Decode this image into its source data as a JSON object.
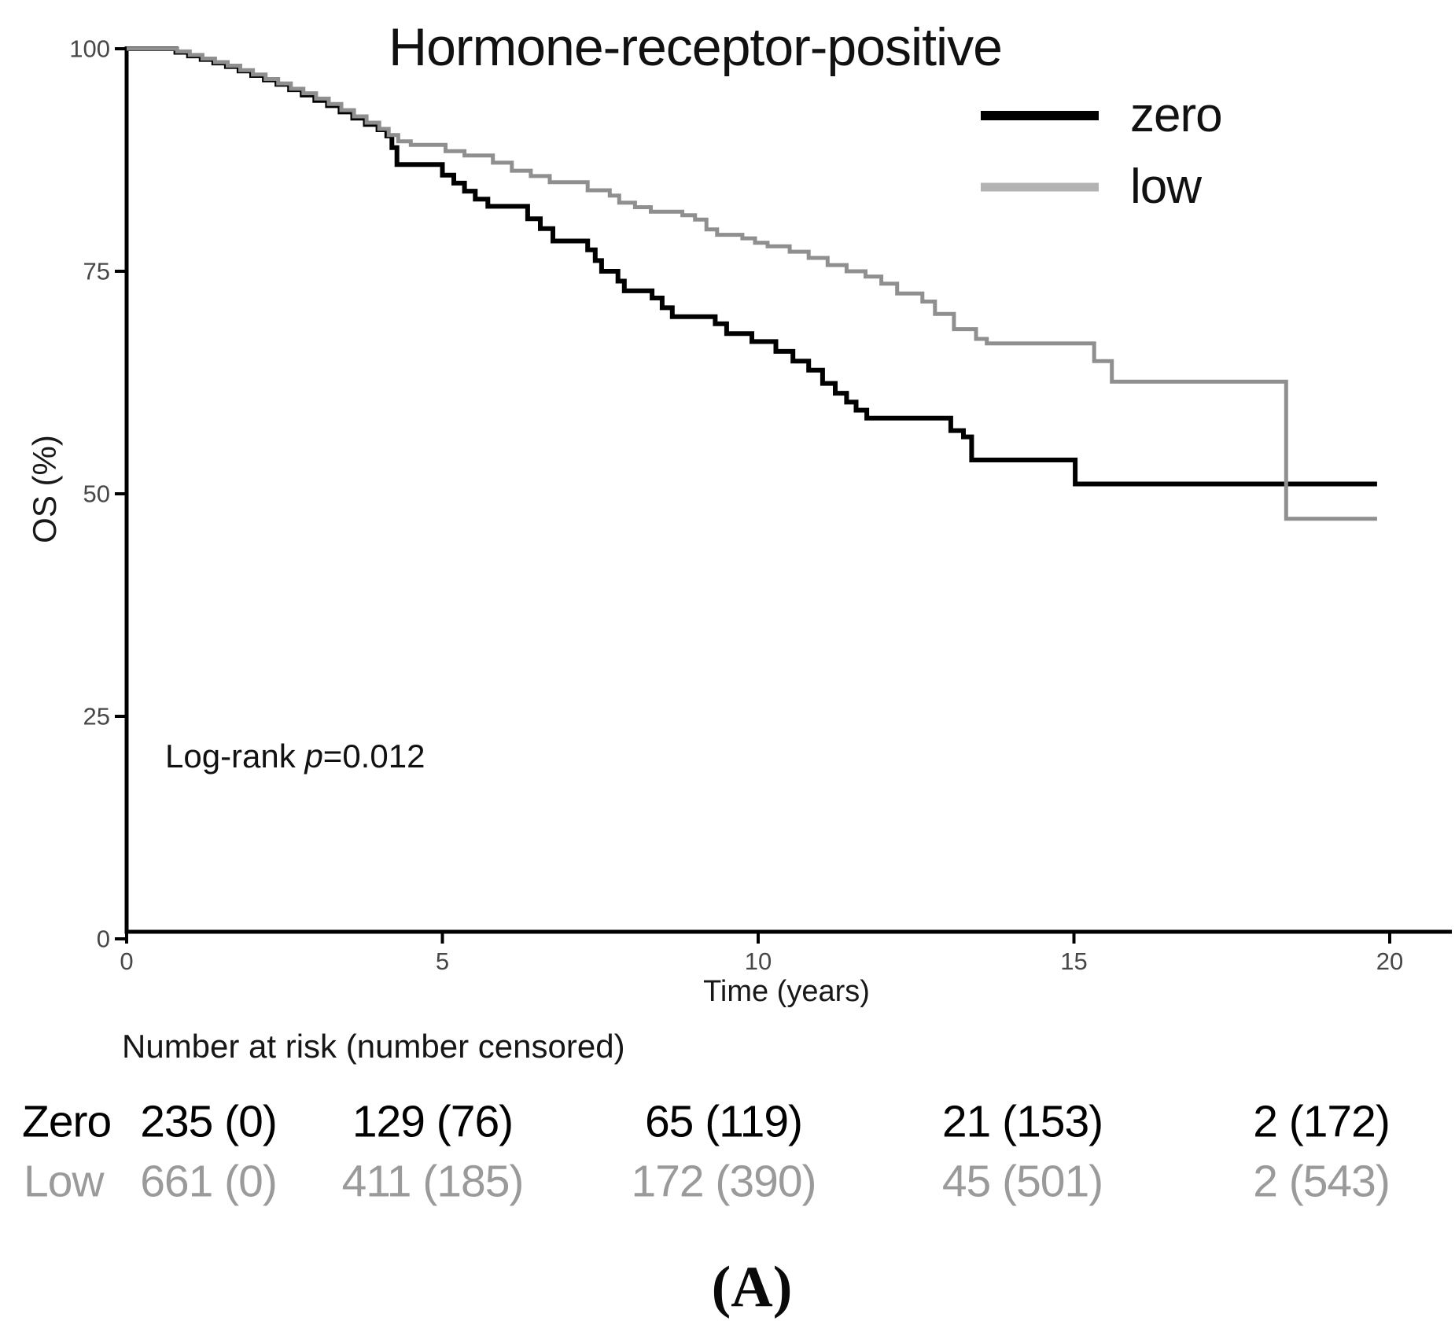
{
  "figure": {
    "panel_label": "(A)"
  },
  "annotations": {
    "log_rank": {
      "prefix": "Log-rank ",
      "p_symbol": "p",
      "value": "=0.012"
    }
  },
  "chart_data": {
    "type": "line",
    "subtype": "kaplan-meier-step",
    "title": "Hormone-receptor-positive",
    "xlabel": "Time (years)",
    "ylabel": "OS (%)",
    "xlim": [
      0,
      20
    ],
    "ylim": [
      0,
      100
    ],
    "xticks": [
      0,
      5,
      10,
      15,
      20
    ],
    "yticks": [
      0,
      25,
      50,
      75,
      100
    ],
    "grid": false,
    "legend_position": "top-right",
    "axis_color": "#000000",
    "tick_label_color": "#474747",
    "series": [
      {
        "name": "zero",
        "color": "#000000",
        "legend_swatch_color": "#000000",
        "line_width": 6,
        "points": [
          [
            0,
            100
          ],
          [
            0.78,
            99.6
          ],
          [
            0.98,
            99.2
          ],
          [
            1.18,
            98.8
          ],
          [
            1.38,
            98.4
          ],
          [
            1.58,
            98.0
          ],
          [
            1.78,
            97.5
          ],
          [
            1.98,
            97.0
          ],
          [
            2.18,
            96.5
          ],
          [
            2.38,
            96.0
          ],
          [
            2.58,
            95.4
          ],
          [
            2.78,
            94.8
          ],
          [
            2.98,
            94.2
          ],
          [
            3.18,
            93.6
          ],
          [
            3.38,
            92.9
          ],
          [
            3.58,
            92.2
          ],
          [
            3.78,
            91.5
          ],
          [
            3.98,
            90.9
          ],
          [
            4.12,
            90.2
          ],
          [
            4.2,
            88.9
          ],
          [
            4.28,
            87.0
          ],
          [
            5.0,
            85.8
          ],
          [
            5.18,
            84.9
          ],
          [
            5.35,
            84.0
          ],
          [
            5.52,
            83.1
          ],
          [
            5.72,
            82.3
          ],
          [
            6.35,
            80.9
          ],
          [
            6.55,
            79.8
          ],
          [
            6.75,
            78.4
          ],
          [
            7.3,
            77.4
          ],
          [
            7.42,
            76.2
          ],
          [
            7.52,
            75.0
          ],
          [
            7.78,
            73.9
          ],
          [
            7.88,
            72.8
          ],
          [
            8.32,
            72.0
          ],
          [
            8.48,
            70.9
          ],
          [
            8.64,
            69.9
          ],
          [
            9.32,
            69.1
          ],
          [
            9.5,
            68.0
          ],
          [
            9.9,
            67.1
          ],
          [
            10.28,
            66.0
          ],
          [
            10.55,
            64.9
          ],
          [
            10.8,
            63.9
          ],
          [
            11.02,
            62.4
          ],
          [
            11.22,
            61.3
          ],
          [
            11.4,
            60.3
          ],
          [
            11.55,
            59.4
          ],
          [
            11.72,
            58.5
          ],
          [
            13.05,
            57.1
          ],
          [
            13.25,
            56.4
          ],
          [
            13.38,
            53.8
          ],
          [
            15.02,
            51.1
          ],
          [
            19.8,
            51.1
          ]
        ]
      },
      {
        "name": "low",
        "color": "#8f8f8f",
        "legend_swatch_color": "#b3b3b3",
        "line_width": 5,
        "points": [
          [
            0,
            100
          ],
          [
            0.8,
            99.7
          ],
          [
            1.0,
            99.3
          ],
          [
            1.2,
            98.9
          ],
          [
            1.4,
            98.5
          ],
          [
            1.6,
            98.1
          ],
          [
            1.8,
            97.6
          ],
          [
            2.0,
            97.1
          ],
          [
            2.2,
            96.6
          ],
          [
            2.4,
            96.1
          ],
          [
            2.6,
            95.5
          ],
          [
            2.8,
            95.0
          ],
          [
            3.0,
            94.4
          ],
          [
            3.2,
            93.8
          ],
          [
            3.4,
            93.1
          ],
          [
            3.6,
            92.4
          ],
          [
            3.8,
            91.7
          ],
          [
            4.0,
            91.0
          ],
          [
            4.15,
            90.3
          ],
          [
            4.3,
            89.6
          ],
          [
            4.5,
            89.2
          ],
          [
            5.05,
            88.5
          ],
          [
            5.35,
            88.0
          ],
          [
            5.8,
            87.2
          ],
          [
            6.1,
            86.3
          ],
          [
            6.4,
            85.7
          ],
          [
            6.7,
            85.0
          ],
          [
            7.3,
            84.1
          ],
          [
            7.65,
            83.5
          ],
          [
            7.8,
            82.7
          ],
          [
            8.05,
            82.2
          ],
          [
            8.3,
            81.7
          ],
          [
            8.8,
            81.3
          ],
          [
            9.0,
            80.8
          ],
          [
            9.18,
            79.7
          ],
          [
            9.35,
            79.1
          ],
          [
            9.75,
            78.7
          ],
          [
            9.95,
            78.2
          ],
          [
            10.15,
            77.8
          ],
          [
            10.5,
            77.2
          ],
          [
            10.8,
            76.5
          ],
          [
            11.1,
            75.7
          ],
          [
            11.4,
            75.0
          ],
          [
            11.7,
            74.4
          ],
          [
            11.95,
            73.6
          ],
          [
            12.2,
            72.5
          ],
          [
            12.6,
            71.6
          ],
          [
            12.8,
            70.2
          ],
          [
            13.1,
            68.5
          ],
          [
            13.45,
            67.4
          ],
          [
            13.62,
            66.9
          ],
          [
            15.32,
            64.9
          ],
          [
            15.6,
            62.6
          ],
          [
            18.36,
            47.2
          ],
          [
            19.8,
            47.2
          ]
        ]
      }
    ]
  },
  "risk_table": {
    "header": "Number at risk (number censored)",
    "rows": [
      {
        "label": "Zero",
        "color": "#000000",
        "values": [
          "235 (0)",
          "129 (76)",
          "65 (119)",
          "21 (153)",
          "2 (172)"
        ]
      },
      {
        "label": "Low",
        "color": "#9a9a9a",
        "values": [
          "661 (0)",
          "411 (185)",
          "172 (390)",
          "45 (501)",
          "2 (543)"
        ]
      }
    ]
  }
}
